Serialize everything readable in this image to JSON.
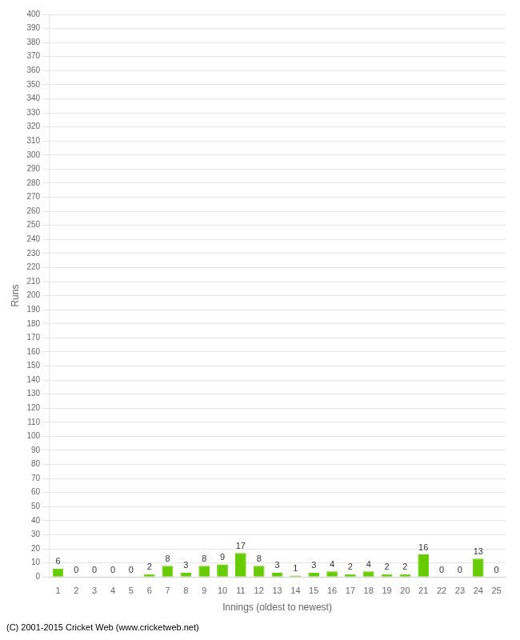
{
  "chart_data": {
    "type": "bar",
    "xlabel": "Innings (oldest to newest)",
    "ylabel": "Runs",
    "categories": [
      "1",
      "2",
      "3",
      "4",
      "5",
      "6",
      "7",
      "8",
      "9",
      "10",
      "11",
      "12",
      "13",
      "14",
      "15",
      "16",
      "17",
      "18",
      "19",
      "20",
      "21",
      "22",
      "23",
      "24",
      "25"
    ],
    "values": [
      6,
      0,
      0,
      0,
      0,
      2,
      8,
      3,
      8,
      9,
      17,
      8,
      3,
      1,
      3,
      4,
      2,
      4,
      2,
      2,
      16,
      0,
      0,
      13,
      0
    ],
    "color": "#66cc00",
    "ylim": [
      0,
      400
    ],
    "yticks": [
      0,
      10,
      20,
      30,
      40,
      50,
      60,
      70,
      80,
      90,
      100,
      110,
      120,
      130,
      140,
      150,
      160,
      170,
      180,
      190,
      200,
      210,
      220,
      230,
      240,
      250,
      260,
      270,
      280,
      290,
      300,
      310,
      320,
      330,
      340,
      350,
      360,
      370,
      380,
      390,
      400
    ],
    "grid": true,
    "data_labels": true,
    "annotations": [
      "(C) 2001-2015 Cricket Web (www.cricketweb.net)"
    ]
  }
}
